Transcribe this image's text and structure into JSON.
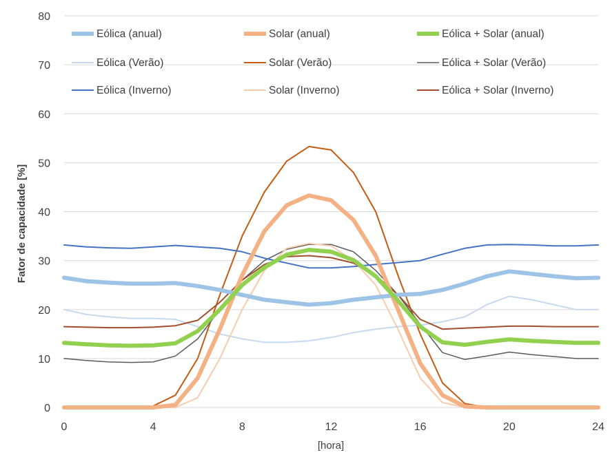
{
  "chart_data": {
    "type": "line",
    "title": "",
    "xlabel": "[hora]",
    "ylabel": "Fator de capacidade [%]",
    "xlim": [
      0,
      24
    ],
    "ylim": [
      0,
      80
    ],
    "xticks": [
      0,
      4,
      8,
      12,
      16,
      20,
      24
    ],
    "yticks": [
      0,
      10,
      20,
      30,
      40,
      50,
      60,
      70,
      80
    ],
    "grid": "horizontal",
    "legend_position": "top",
    "x": [
      0,
      1,
      2,
      3,
      4,
      5,
      6,
      7,
      8,
      9,
      10,
      11,
      12,
      13,
      14,
      15,
      16,
      17,
      18,
      19,
      20,
      21,
      22,
      23,
      24
    ],
    "series": [
      {
        "name": "Eólica (anual)",
        "color": "#9dc3e6",
        "width": 6,
        "values": [
          26.5,
          25.8,
          25.5,
          25.3,
          25.3,
          25.4,
          24.8,
          24,
          23,
          22,
          21.5,
          21,
          21.3,
          22,
          22.5,
          23,
          23.2,
          24,
          25.3,
          26.8,
          27.8,
          27.3,
          26.8,
          26.4,
          26.5
        ]
      },
      {
        "name": "Solar (anual)",
        "color": "#f4b183",
        "width": 6,
        "values": [
          0,
          0,
          0,
          0,
          0,
          0.5,
          6,
          16,
          27,
          36,
          41.3,
          43.3,
          42.3,
          38.3,
          31,
          20,
          9,
          2.5,
          0.2,
          0,
          0,
          0,
          0,
          0,
          0
        ]
      },
      {
        "name": "Eólica + Solar (anual)",
        "color": "#92d050",
        "width": 6,
        "values": [
          13.2,
          12.9,
          12.7,
          12.6,
          12.7,
          13.1,
          15.6,
          20,
          25,
          28.6,
          31.2,
          32.2,
          31.8,
          30.1,
          26.8,
          21.8,
          16.5,
          13.3,
          12.8,
          13.4,
          13.9,
          13.6,
          13.4,
          13.2,
          13.2
        ]
      },
      {
        "name": "Eólica (Verão)",
        "color": "#c5d9ef",
        "width": 2,
        "values": [
          20,
          19,
          18.5,
          18.2,
          18.2,
          18,
          16.5,
          15,
          14,
          13.3,
          13.3,
          13.6,
          14.3,
          15.3,
          16,
          16.5,
          16.8,
          17.5,
          18.5,
          21,
          22.7,
          22,
          21,
          20,
          20
        ]
      },
      {
        "name": "Solar (Verão)",
        "color": "#c55a11",
        "width": 2,
        "values": [
          0,
          0,
          0,
          0,
          0.3,
          2.5,
          10,
          23,
          35,
          44,
          50.3,
          53.3,
          52.6,
          48,
          40,
          27,
          15,
          5,
          0.8,
          0,
          0,
          0,
          0,
          0,
          0
        ]
      },
      {
        "name": "Eólica + Solar (Verão)",
        "color": "#595959",
        "width": 1.5,
        "values": [
          10,
          9.6,
          9.3,
          9.2,
          9.3,
          10.5,
          14,
          20,
          26,
          30,
          32.3,
          33.3,
          33.3,
          31.8,
          28,
          23,
          17,
          11.2,
          9.8,
          10.5,
          11.3,
          10.8,
          10.4,
          10,
          10
        ]
      },
      {
        "name": "Eólica (Inverno)",
        "color": "#4472c4",
        "width": 2,
        "values": [
          33.2,
          32.8,
          32.6,
          32.5,
          32.8,
          33.1,
          32.8,
          32.5,
          31.8,
          30.5,
          29.5,
          28.5,
          28.5,
          28.8,
          29.2,
          29.6,
          30,
          31.3,
          32.5,
          33.2,
          33.3,
          33.2,
          33,
          33,
          33.2
        ]
      },
      {
        "name": "Solar (Inverno)",
        "color": "#f8cbad",
        "width": 2,
        "values": [
          0,
          0,
          0,
          0,
          0,
          0,
          2,
          10,
          20,
          28,
          32.5,
          33.5,
          33,
          30,
          25,
          16,
          6,
          1,
          0,
          0,
          0,
          0,
          0,
          0,
          0
        ]
      },
      {
        "name": "Eólica + Solar (Inverno)",
        "color": "#a14e2a",
        "width": 2,
        "values": [
          16.5,
          16.4,
          16.3,
          16.3,
          16.4,
          16.7,
          17.8,
          21.5,
          26,
          29.2,
          30.8,
          31,
          30.6,
          29.5,
          27,
          23,
          18,
          16,
          16.2,
          16.4,
          16.6,
          16.6,
          16.5,
          16.5,
          16.5
        ]
      }
    ]
  }
}
